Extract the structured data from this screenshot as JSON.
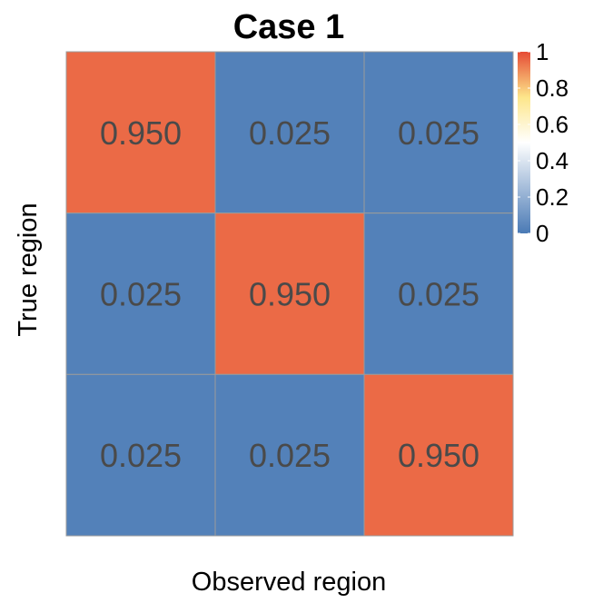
{
  "chart_data": {
    "type": "heatmap",
    "title": "Case 1",
    "xlabel": "Observed region",
    "ylabel": "True region",
    "rows": 3,
    "cols": 3,
    "values": [
      [
        0.95,
        0.025,
        0.025
      ],
      [
        0.025,
        0.95,
        0.025
      ],
      [
        0.025,
        0.025,
        0.95
      ]
    ],
    "cell_labels": [
      [
        "0.950",
        "0.025",
        "0.025"
      ],
      [
        "0.025",
        "0.950",
        "0.025"
      ],
      [
        "0.025",
        "0.025",
        "0.950"
      ]
    ],
    "color_scale": {
      "range": [
        0,
        1
      ],
      "stops": [
        {
          "value": 0,
          "color": "#4a7ab5"
        },
        {
          "value": 0.5,
          "color": "#ffffff"
        },
        {
          "value": 0.75,
          "color": "#fde68a"
        },
        {
          "value": 1,
          "color": "#e64b35"
        }
      ],
      "ticks": [
        {
          "value": 0,
          "label": "0"
        },
        {
          "value": 0.2,
          "label": "0.2"
        },
        {
          "value": 0.4,
          "label": "0.4"
        },
        {
          "value": 0.6,
          "label": "0.6"
        },
        {
          "value": 0.8,
          "label": "0.8"
        },
        {
          "value": 1,
          "label": "1"
        }
      ]
    },
    "grid_color": "#9b9b9b",
    "legend_position": "right-top"
  }
}
